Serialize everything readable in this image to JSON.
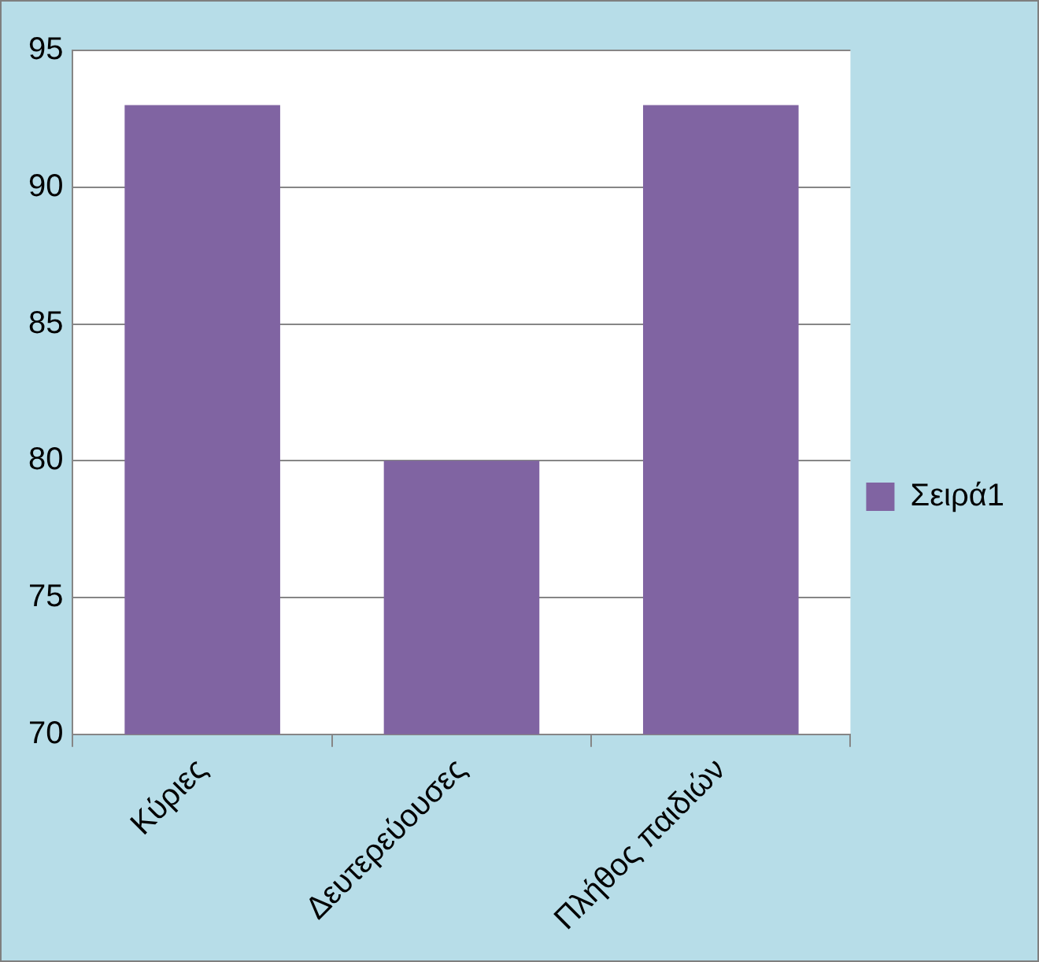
{
  "chart_data": {
    "type": "bar",
    "categories": [
      "Κύριες",
      "Δευτερεύουσες",
      "Πλήθος παιδιών"
    ],
    "series": [
      {
        "name": "Σειρά1",
        "color": "#8064a2",
        "values": [
          93,
          80,
          93
        ]
      }
    ],
    "ylim": [
      70,
      95
    ],
    "yticks": [
      70,
      75,
      80,
      85,
      90,
      95
    ],
    "grid": "y",
    "legend": "right"
  }
}
